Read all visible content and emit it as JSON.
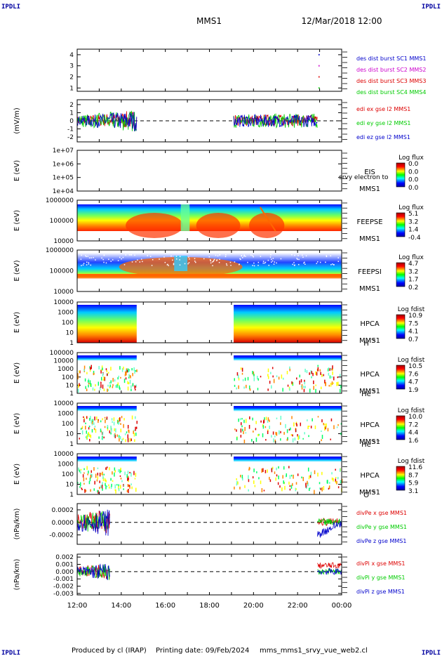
{
  "header": {
    "corner_tl": "IPDLI",
    "corner_tr": "IPDLI",
    "corner_bl": "IPDLI",
    "corner_br": "IPDLI",
    "spacecraft": "MMS1",
    "date": "12/Mar/2018 12:00"
  },
  "footer": {
    "produced_by": "Produced by cl (IRAP)",
    "printing_date": "Printing date: 09/Feb/2024",
    "file": "mms_mms1_srvy_vue_web2.cl"
  },
  "time_axis": {
    "ticks": [
      "12:00",
      "14:00",
      "16:00",
      "18:00",
      "20:00",
      "22:00",
      "00:00"
    ],
    "start_hour": 12,
    "end_hour": 24
  },
  "colors": {
    "mms1": "#0000cc",
    "mms2": "#cc00cc",
    "mms3": "#dd0000",
    "mms4": "#00cc00",
    "x": "#dd0000",
    "y": "#00cc00",
    "z": "#0000cc"
  },
  "chart_data": [
    {
      "id": "desdist",
      "type": "scatter",
      "ylabel": "",
      "yticks": [
        "1",
        "2",
        "3",
        "4"
      ],
      "ylim": [
        0.7,
        4.5
      ],
      "series": [
        {
          "name": "des dist burst SC1 MMS1",
          "color": "#0000cc",
          "x": [
            22.95
          ],
          "y": [
            4
          ]
        },
        {
          "name": "des dist burst SC2 MMS2",
          "color": "#cc00cc",
          "x": [
            22.95
          ],
          "y": [
            3
          ]
        },
        {
          "name": "des dist burst SC3 MMS3",
          "color": "#dd0000",
          "x": [
            22.95
          ],
          "y": [
            2
          ]
        },
        {
          "name": "des dist burst SC4 MMS4",
          "color": "#00cc00",
          "x": [
            22.95
          ],
          "y": [
            1
          ]
        }
      ]
    },
    {
      "id": "edi",
      "type": "line",
      "ylabel": "(mV/m)",
      "yticks": [
        "2",
        "1",
        "0",
        "-1",
        "-2"
      ],
      "ylim": [
        -2.6,
        2.6
      ],
      "intervals": [
        [
          12.0,
          14.7
        ],
        [
          19.1,
          22.9
        ]
      ],
      "series": [
        {
          "name": "edi ex gse l2 MMS1",
          "color": "#dd0000"
        },
        {
          "name": "edi ey gse l2 MMS1",
          "color": "#00cc00"
        },
        {
          "name": "edi ez gse l2 MMS1",
          "color": "#0000cc"
        }
      ]
    },
    {
      "id": "eis",
      "type": "heatmap",
      "ylabel": "E (eV)",
      "yticks": [
        "1e+07",
        "1e+06",
        "1e+05",
        "1e+04"
      ],
      "labels": [
        "EIS",
        "MMS1"
      ],
      "overlay": "srvy electron to",
      "colorbar": {
        "title": "Log flux",
        "ticks": [
          "0.0",
          "0.0",
          "0.0",
          "0.0"
        ]
      }
    },
    {
      "id": "feepse",
      "type": "heatmap",
      "ylabel": "E (eV)",
      "yticks": [
        "1000000",
        "100000",
        "10000"
      ],
      "labels": [
        "FEEPSE",
        "MMS1"
      ],
      "colorbar": {
        "title": "Log flux",
        "ticks": [
          "5.1",
          "3.2",
          "1.4",
          "-0.4"
        ]
      }
    },
    {
      "id": "feepsi",
      "type": "heatmap",
      "ylabel": "E (eV)",
      "yticks": [
        "1000000",
        "100000",
        "10000"
      ],
      "labels": [
        "FEEPSI",
        "MMS1"
      ],
      "colorbar": {
        "title": "Log flux",
        "ticks": [
          "4.7",
          "3.2",
          "1.7",
          "0.2"
        ]
      }
    },
    {
      "id": "hpca_h",
      "type": "heatmap",
      "ylabel": "E (eV)",
      "yticks": [
        "10000",
        "1000",
        "100",
        "10",
        "1"
      ],
      "labels": [
        "HPCA",
        "MMS1"
      ],
      "species": "H",
      "charge": "+",
      "intervals": [
        [
          12.0,
          14.7
        ],
        [
          19.1,
          24.0
        ]
      ],
      "colorbar": {
        "title": "Log fdist",
        "ticks": [
          "10.9",
          "7.5",
          "4.1",
          "0.7"
        ]
      }
    },
    {
      "id": "hpca_he1",
      "type": "heatmap",
      "ylabel": "E (eV)",
      "yticks": [
        "100000",
        "10000",
        "1000",
        "100",
        "10",
        "1"
      ],
      "labels": [
        "HPCA",
        "MMS1"
      ],
      "species": "He",
      "charge": "+",
      "intervals": [
        [
          12.0,
          14.7
        ],
        [
          19.1,
          24.0
        ]
      ],
      "colorbar": {
        "title": "Log fdist",
        "ticks": [
          "10.5",
          "7.6",
          "4.7",
          "1.9"
        ]
      }
    },
    {
      "id": "hpca_he2",
      "type": "heatmap",
      "ylabel": "E (eV)",
      "yticks": [
        "10000",
        "1000",
        "100",
        "10",
        "1"
      ],
      "labels": [
        "HPCA",
        "MMS1"
      ],
      "species": "He",
      "charge": "++",
      "intervals": [
        [
          12.0,
          14.7
        ],
        [
          19.1,
          24.0
        ]
      ],
      "colorbar": {
        "title": "Log fdist",
        "ticks": [
          "10.0",
          "7.2",
          "4.4",
          "1.6"
        ]
      }
    },
    {
      "id": "hpca_o",
      "type": "heatmap",
      "ylabel": "E (eV)",
      "yticks": [
        "10000",
        "1000",
        "100",
        "10",
        "1"
      ],
      "labels": [
        "HPCA",
        "MMS1"
      ],
      "species": "O",
      "charge": "+",
      "intervals": [
        [
          12.0,
          14.7
        ],
        [
          19.1,
          24.0
        ]
      ],
      "colorbar": {
        "title": "Log fdist",
        "ticks": [
          "11.6",
          "8.7",
          "5.9",
          "3.1"
        ]
      }
    },
    {
      "id": "divpe",
      "type": "line",
      "ylabel": "(nPa/km)",
      "yticks": [
        "0.0002",
        "0.0000",
        "-0.0002"
      ],
      "ylim": [
        -0.00035,
        0.0003
      ],
      "intervals": [
        [
          12.0,
          13.5
        ],
        [
          22.9,
          24.0
        ]
      ],
      "series": [
        {
          "name": "divPe x gse MMS1",
          "color": "#dd0000"
        },
        {
          "name": "divPe y gse MMS1",
          "color": "#00cc00"
        },
        {
          "name": "divPe z gse MMS1",
          "color": "#0000cc"
        }
      ]
    },
    {
      "id": "divpi",
      "type": "line",
      "ylabel": "(nPa/km)",
      "yticks": [
        "0.002",
        "0.001",
        "0.000",
        "-0.001",
        "-0.002",
        "-0.003"
      ],
      "ylim": [
        -0.0032,
        0.0024
      ],
      "intervals": [
        [
          12.0,
          13.5
        ],
        [
          22.9,
          24.0
        ]
      ],
      "series": [
        {
          "name": "divPi x gse MMS1",
          "color": "#dd0000"
        },
        {
          "name": "divPi y gse MMS1",
          "color": "#00cc00"
        },
        {
          "name": "divPi z gse MMS1",
          "color": "#0000cc"
        }
      ]
    }
  ]
}
